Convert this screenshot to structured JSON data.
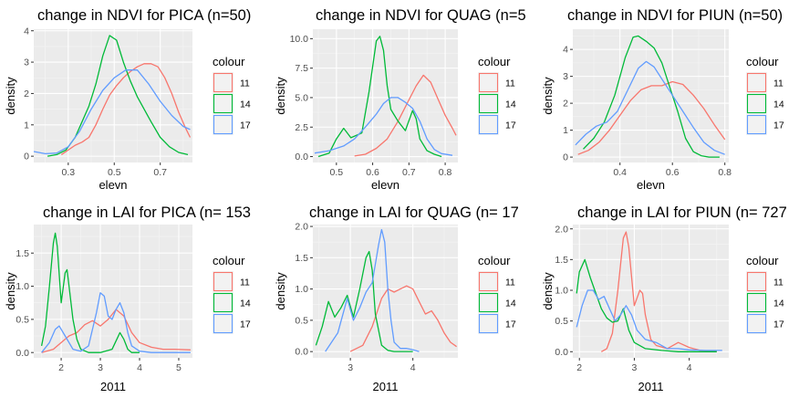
{
  "chart_data": [
    {
      "type": "line",
      "title": "change in NDVI for PICA (n=50)",
      "xlabel": "elevn",
      "ylabel": "density",
      "xlim": [
        0.15,
        0.84
      ],
      "ylim": [
        -0.2,
        4.05
      ],
      "xticks": [
        0.3,
        0.5,
        0.7
      ],
      "xtick_labels": [
        "0.3",
        "0.5",
        "0.7"
      ],
      "yticks": [
        0,
        1,
        2,
        3,
        4
      ],
      "ytick_labels": [
        "0",
        "1",
        "2",
        "3",
        "4"
      ],
      "legend": {
        "title": "colour",
        "position": "right"
      },
      "series": [
        {
          "name": "11",
          "color": "#F8766D",
          "x": [
            0.27,
            0.3,
            0.33,
            0.36,
            0.39,
            0.42,
            0.45,
            0.48,
            0.51,
            0.54,
            0.57,
            0.6,
            0.63,
            0.66,
            0.69,
            0.72,
            0.75,
            0.78,
            0.81,
            0.83
          ],
          "y": [
            0.05,
            0.2,
            0.35,
            0.45,
            0.6,
            1.0,
            1.5,
            1.95,
            2.25,
            2.5,
            2.7,
            2.85,
            2.95,
            2.95,
            2.85,
            2.5,
            2.0,
            1.4,
            0.9,
            0.6
          ]
        },
        {
          "name": "14",
          "color": "#00BA38",
          "x": [
            0.21,
            0.25,
            0.29,
            0.33,
            0.36,
            0.39,
            0.42,
            0.45,
            0.48,
            0.51,
            0.54,
            0.57,
            0.6,
            0.63,
            0.66,
            0.7,
            0.74,
            0.78,
            0.82
          ],
          "y": [
            0.0,
            0.05,
            0.2,
            0.6,
            1.1,
            1.6,
            2.3,
            3.2,
            3.85,
            3.7,
            3.0,
            2.4,
            1.9,
            1.5,
            1.1,
            0.6,
            0.3,
            0.12,
            0.05
          ]
        },
        {
          "name": "17",
          "color": "#619CFF",
          "x": [
            0.15,
            0.2,
            0.25,
            0.3,
            0.35,
            0.4,
            0.45,
            0.5,
            0.55,
            0.6,
            0.65,
            0.7,
            0.75,
            0.8,
            0.83
          ],
          "y": [
            0.15,
            0.08,
            0.1,
            0.3,
            0.8,
            1.5,
            2.1,
            2.5,
            2.75,
            2.75,
            2.3,
            1.75,
            1.3,
            0.95,
            0.85
          ]
        }
      ]
    },
    {
      "type": "line",
      "title": "change in NDVI for QUAG (n=5",
      "xlabel": "elevn",
      "ylabel": "density",
      "xlim": [
        0.435,
        0.835
      ],
      "ylim": [
        -0.5,
        10.8
      ],
      "xticks": [
        0.5,
        0.6,
        0.7,
        0.8
      ],
      "xtick_labels": [
        "0.5",
        "0.6",
        "0.7",
        "0.8"
      ],
      "yticks": [
        0,
        2.5,
        5.0,
        7.5,
        10.0
      ],
      "ytick_labels": [
        "0.0",
        "2.5",
        "5.0",
        "7.5",
        "10.0"
      ],
      "legend": {
        "title": "colour",
        "position": "right"
      },
      "series": [
        {
          "name": "11",
          "color": "#F8766D",
          "x": [
            0.55,
            0.58,
            0.61,
            0.64,
            0.67,
            0.7,
            0.72,
            0.74,
            0.76,
            0.78,
            0.8,
            0.82,
            0.83
          ],
          "y": [
            0.05,
            0.2,
            0.7,
            1.5,
            3.0,
            4.8,
            6.0,
            6.9,
            6.3,
            4.9,
            3.5,
            2.4,
            1.8
          ]
        },
        {
          "name": "14",
          "color": "#00BA38",
          "x": [
            0.45,
            0.48,
            0.5,
            0.52,
            0.54,
            0.57,
            0.59,
            0.61,
            0.62,
            0.63,
            0.64,
            0.65,
            0.67,
            0.69,
            0.71,
            0.72,
            0.73,
            0.75,
            0.77,
            0.79
          ],
          "y": [
            0.0,
            0.3,
            1.5,
            2.4,
            1.6,
            2.0,
            5.5,
            9.8,
            10.2,
            9.0,
            6.0,
            4.0,
            3.0,
            2.2,
            3.9,
            3.2,
            1.5,
            0.5,
            0.2,
            0.0
          ]
        },
        {
          "name": "17",
          "color": "#619CFF",
          "x": [
            0.44,
            0.48,
            0.52,
            0.55,
            0.58,
            0.61,
            0.63,
            0.65,
            0.67,
            0.69,
            0.71,
            0.73,
            0.75,
            0.77,
            0.79,
            0.82
          ],
          "y": [
            0.3,
            0.5,
            0.9,
            1.5,
            2.5,
            3.6,
            4.5,
            5.0,
            5.0,
            4.6,
            4.1,
            3.0,
            1.5,
            0.6,
            0.25,
            0.1
          ]
        }
      ]
    },
    {
      "type": "line",
      "title": "change in NDVI for PIUN (n=50)",
      "xlabel": "elevn",
      "ylabel": "density",
      "xlim": [
        0.22,
        0.815
      ],
      "ylim": [
        -0.2,
        4.75
      ],
      "xticks": [
        0.4,
        0.6,
        0.8
      ],
      "xtick_labels": [
        "0.4",
        "0.6",
        "0.8"
      ],
      "yticks": [
        0,
        1,
        2,
        3,
        4
      ],
      "ytick_labels": [
        "0",
        "1",
        "2",
        "3",
        "4"
      ],
      "legend": {
        "title": "colour",
        "position": "right"
      },
      "series": [
        {
          "name": "11",
          "color": "#F8766D",
          "x": [
            0.24,
            0.28,
            0.32,
            0.36,
            0.4,
            0.44,
            0.48,
            0.52,
            0.56,
            0.6,
            0.64,
            0.68,
            0.72,
            0.76,
            0.8
          ],
          "y": [
            0.1,
            0.25,
            0.55,
            1.0,
            1.55,
            2.1,
            2.5,
            2.65,
            2.65,
            2.8,
            2.7,
            2.3,
            1.8,
            1.2,
            0.65
          ]
        },
        {
          "name": "14",
          "color": "#00BA38",
          "x": [
            0.26,
            0.3,
            0.34,
            0.38,
            0.42,
            0.45,
            0.47,
            0.5,
            0.53,
            0.56,
            0.59,
            0.62,
            0.65,
            0.68,
            0.71,
            0.74,
            0.78
          ],
          "y": [
            0.3,
            0.7,
            1.3,
            2.3,
            3.7,
            4.45,
            4.5,
            4.3,
            4.05,
            3.5,
            2.6,
            1.7,
            0.7,
            0.2,
            0.05,
            0.0,
            0.0
          ]
        },
        {
          "name": "17",
          "color": "#619CFF",
          "x": [
            0.23,
            0.27,
            0.31,
            0.35,
            0.39,
            0.43,
            0.47,
            0.5,
            0.53,
            0.56,
            0.6,
            0.64,
            0.68,
            0.72,
            0.76,
            0.8
          ],
          "y": [
            0.45,
            0.85,
            1.15,
            1.3,
            1.7,
            2.5,
            3.3,
            3.55,
            3.35,
            2.9,
            2.3,
            1.7,
            1.1,
            0.55,
            0.25,
            0.1
          ]
        }
      ]
    },
    {
      "type": "line",
      "title": "change in LAI for PICA (n= 153",
      "xlabel": "2011",
      "ylabel": "density",
      "xlim": [
        1.3,
        5.35
      ],
      "ylim": [
        -0.08,
        1.93
      ],
      "xticks": [
        2,
        3,
        4,
        5
      ],
      "xtick_labels": [
        "2",
        "3",
        "4",
        "5"
      ],
      "yticks": [
        0.0,
        0.5,
        1.0,
        1.5
      ],
      "ytick_labels": [
        "0.0",
        "0.5",
        "1.0",
        "1.5"
      ],
      "legend": {
        "title": "colour",
        "position": "right"
      },
      "series": [
        {
          "name": "11",
          "color": "#F8766D",
          "x": [
            1.5,
            1.8,
            2.0,
            2.2,
            2.4,
            2.6,
            2.8,
            3.0,
            3.2,
            3.4,
            3.6,
            3.8,
            4.0,
            4.3,
            4.6,
            4.9,
            5.3
          ],
          "y": [
            0.0,
            0.05,
            0.15,
            0.25,
            0.3,
            0.42,
            0.48,
            0.4,
            0.5,
            0.65,
            0.55,
            0.3,
            0.15,
            0.08,
            0.05,
            0.05,
            0.04
          ]
        },
        {
          "name": "14",
          "color": "#00BA38",
          "x": [
            1.5,
            1.6,
            1.7,
            1.8,
            1.85,
            1.9,
            2.0,
            2.1,
            2.15,
            2.2,
            2.3,
            2.4,
            2.5,
            2.7,
            3.0,
            3.3,
            3.5,
            3.6,
            3.7,
            3.8,
            4.0
          ],
          "y": [
            0.1,
            0.4,
            1.0,
            1.65,
            1.8,
            1.6,
            0.75,
            1.2,
            1.25,
            1.0,
            0.5,
            0.2,
            0.05,
            0.0,
            0.0,
            0.05,
            0.3,
            0.2,
            0.05,
            0.0,
            0.0
          ]
        },
        {
          "name": "17",
          "color": "#619CFF",
          "x": [
            1.5,
            1.7,
            1.85,
            1.95,
            2.1,
            2.3,
            2.5,
            2.7,
            2.9,
            3.0,
            3.1,
            3.2,
            3.3,
            3.4,
            3.5,
            3.6,
            3.7,
            3.8,
            4.0,
            4.3,
            4.6,
            5.0,
            5.3
          ],
          "y": [
            0.0,
            0.15,
            0.35,
            0.4,
            0.25,
            0.05,
            0.02,
            0.1,
            0.6,
            0.9,
            0.85,
            0.55,
            0.5,
            0.65,
            0.75,
            0.6,
            0.3,
            0.1,
            0.02,
            0.0,
            0.0,
            0.0,
            0.0
          ]
        }
      ]
    },
    {
      "type": "line",
      "title": "change in LAI for QUAG (n= 17",
      "xlabel": "2011",
      "ylabel": "density",
      "xlim": [
        2.4,
        4.72
      ],
      "ylim": [
        -0.1,
        2.03
      ],
      "xticks": [
        3,
        4
      ],
      "xtick_labels": [
        "3",
        "4"
      ],
      "yticks": [
        0.0,
        0.5,
        1.0,
        1.5,
        2.0
      ],
      "ytick_labels": [
        "0.0",
        "0.5",
        "1.0",
        "1.5",
        "2.0"
      ],
      "legend": {
        "title": "colour",
        "position": "right"
      },
      "series": [
        {
          "name": "11",
          "color": "#F8766D",
          "x": [
            3.0,
            3.2,
            3.35,
            3.5,
            3.6,
            3.7,
            3.8,
            3.9,
            4.0,
            4.1,
            4.2,
            4.3,
            4.4,
            4.5,
            4.6,
            4.7
          ],
          "y": [
            0.0,
            0.1,
            0.4,
            0.85,
            1.0,
            0.95,
            1.0,
            1.05,
            1.0,
            0.8,
            0.6,
            0.65,
            0.5,
            0.3,
            0.15,
            0.08
          ]
        },
        {
          "name": "14",
          "color": "#00BA38",
          "x": [
            2.45,
            2.55,
            2.65,
            2.75,
            2.85,
            2.95,
            3.05,
            3.15,
            3.25,
            3.3,
            3.35,
            3.4,
            3.5,
            3.6,
            3.7,
            3.8,
            3.9,
            4.0
          ],
          "y": [
            0.1,
            0.4,
            0.8,
            0.55,
            0.7,
            0.9,
            0.55,
            1.0,
            1.5,
            1.6,
            1.3,
            0.6,
            0.1,
            0.02,
            0.0,
            0.0,
            0.0,
            0.0
          ]
        },
        {
          "name": "17",
          "color": "#619CFF",
          "x": [
            2.6,
            2.8,
            2.95,
            3.05,
            3.15,
            3.25,
            3.35,
            3.45,
            3.5,
            3.55,
            3.6,
            3.65,
            3.7,
            3.8,
            3.9,
            4.0,
            4.1
          ],
          "y": [
            0.0,
            0.3,
            0.85,
            0.5,
            0.7,
            0.95,
            1.1,
            1.7,
            1.95,
            1.75,
            1.0,
            0.5,
            0.15,
            0.05,
            0.05,
            0.03,
            0.0
          ]
        }
      ]
    },
    {
      "type": "line",
      "title": "change in LAI for PIUN (n= 727",
      "xlabel": "2011",
      "ylabel": "density",
      "xlim": [
        1.88,
        4.72
      ],
      "ylim": [
        -0.1,
        2.07
      ],
      "xticks": [
        2,
        3,
        4
      ],
      "xtick_labels": [
        "2",
        "3",
        "4"
      ],
      "yticks": [
        0.0,
        0.5,
        1.0,
        1.5,
        2.0
      ],
      "ytick_labels": [
        "0.0",
        "0.5",
        "1.0",
        "1.5",
        "2.0"
      ],
      "legend": {
        "title": "colour",
        "position": "right"
      },
      "series": [
        {
          "name": "11",
          "color": "#F8766D",
          "x": [
            2.4,
            2.5,
            2.6,
            2.7,
            2.8,
            2.85,
            2.9,
            3.0,
            3.1,
            3.15,
            3.2,
            3.3,
            3.4,
            3.6,
            3.8,
            4.0,
            4.2,
            4.5
          ],
          "y": [
            0.0,
            0.05,
            0.3,
            1.0,
            1.85,
            1.95,
            1.7,
            0.75,
            1.0,
            0.95,
            0.6,
            0.2,
            0.1,
            0.05,
            0.15,
            0.07,
            0.02,
            0.0
          ]
        },
        {
          "name": "14",
          "color": "#00BA38",
          "x": [
            1.95,
            2.0,
            2.1,
            2.2,
            2.3,
            2.4,
            2.5,
            2.6,
            2.7,
            2.8,
            2.9,
            3.0,
            3.2,
            3.5,
            3.8,
            4.1,
            4.5
          ],
          "y": [
            0.95,
            1.3,
            1.5,
            1.2,
            0.95,
            0.7,
            0.55,
            0.48,
            0.5,
            0.7,
            0.35,
            0.15,
            0.05,
            0.02,
            0.0,
            0.0,
            0.0
          ]
        },
        {
          "name": "17",
          "color": "#619CFF",
          "x": [
            1.95,
            2.05,
            2.15,
            2.25,
            2.35,
            2.45,
            2.55,
            2.65,
            2.75,
            2.85,
            2.95,
            3.05,
            3.2,
            3.4,
            3.6,
            3.8,
            4.0,
            4.3,
            4.6
          ],
          "y": [
            0.4,
            0.75,
            1.0,
            1.0,
            0.85,
            0.9,
            0.7,
            0.5,
            0.6,
            0.75,
            0.6,
            0.35,
            0.2,
            0.15,
            0.05,
            0.05,
            0.03,
            0.02,
            0.02
          ]
        }
      ]
    }
  ]
}
